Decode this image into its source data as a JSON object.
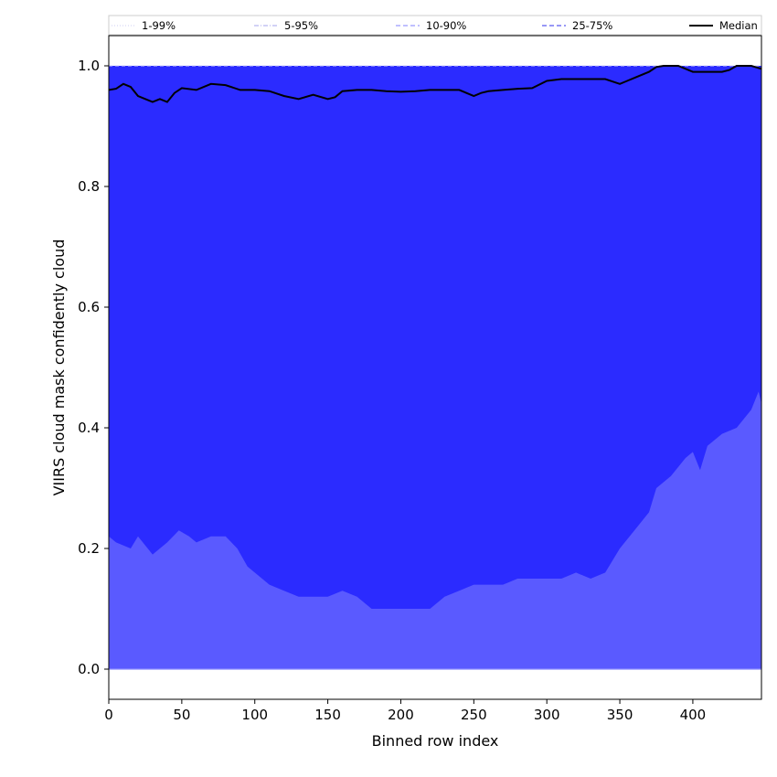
{
  "chart_data": {
    "type": "area",
    "title": "",
    "xlabel": "Binned row index",
    "ylabel": "VIIRS cloud mask confidently cloud",
    "xlim": [
      0,
      447
    ],
    "ylim": [
      -0.05,
      1.05
    ],
    "x_ticks": [
      "0",
      "50",
      "100",
      "150",
      "200",
      "250",
      "300",
      "350",
      "400"
    ],
    "x_tick_values": [
      0,
      50,
      100,
      150,
      200,
      250,
      300,
      350,
      400
    ],
    "y_ticks": [
      "0.0",
      "0.2",
      "0.4",
      "0.6",
      "0.8",
      "1.0"
    ],
    "y_tick_values": [
      0.0,
      0.2,
      0.4,
      0.6,
      0.8,
      1.0
    ],
    "grid": false,
    "legend_position": "top",
    "legend": [
      {
        "label": "1-99%",
        "color": "#d6d6f5",
        "style": "dotted"
      },
      {
        "label": "5-95%",
        "color": "#b6b6f0",
        "style": "dashdot"
      },
      {
        "label": "10-90%",
        "color": "#9a9aff",
        "style": "dashed"
      },
      {
        "label": "25-75%",
        "color": "#5a5af0",
        "style": "dashed"
      },
      {
        "label": "Median",
        "color": "#000000",
        "style": "solid"
      }
    ],
    "series": [
      {
        "name": "1-99%",
        "color": "#2b2bff",
        "x": [
          0,
          447
        ],
        "lower": [
          0.0,
          0.0
        ],
        "upper": [
          1.0,
          1.0
        ]
      },
      {
        "name": "5-95%",
        "color": "#2b2bff",
        "x": [
          0,
          447
        ],
        "lower": [
          0.0,
          0.0
        ],
        "upper": [
          1.0,
          1.0
        ]
      },
      {
        "name": "10-90%",
        "color": "#2b2bff",
        "x": [
          0,
          447
        ],
        "lower": [
          0.0,
          0.0
        ],
        "upper": [
          1.0,
          1.0
        ]
      },
      {
        "name": "25-75%",
        "color": "#5a5aff",
        "x": [
          0,
          5,
          15,
          20,
          30,
          35,
          40,
          48,
          55,
          60,
          70,
          80,
          88,
          95,
          100,
          110,
          120,
          130,
          140,
          150,
          160,
          170,
          180,
          190,
          200,
          210,
          220,
          230,
          240,
          250,
          260,
          270,
          280,
          290,
          300,
          310,
          320,
          330,
          340,
          350,
          360,
          370,
          375,
          385,
          395,
          400,
          405,
          410,
          420,
          430,
          440,
          445,
          447
        ],
        "lower": [
          0,
          0,
          0,
          0,
          0,
          0,
          0,
          0,
          0,
          0,
          0,
          0,
          0,
          0,
          0,
          0,
          0,
          0,
          0,
          0,
          0,
          0,
          0,
          0,
          0,
          0,
          0,
          0,
          0,
          0,
          0,
          0,
          0,
          0,
          0,
          0,
          0,
          0,
          0,
          0,
          0,
          0,
          0,
          0,
          0,
          0,
          0,
          0,
          0,
          0,
          0,
          0,
          0
        ],
        "upper": [
          0.22,
          0.21,
          0.2,
          0.22,
          0.19,
          0.2,
          0.21,
          0.23,
          0.22,
          0.21,
          0.22,
          0.22,
          0.2,
          0.17,
          0.16,
          0.14,
          0.13,
          0.12,
          0.12,
          0.12,
          0.13,
          0.12,
          0.1,
          0.1,
          0.1,
          0.1,
          0.1,
          0.12,
          0.13,
          0.14,
          0.14,
          0.14,
          0.15,
          0.15,
          0.15,
          0.15,
          0.16,
          0.15,
          0.16,
          0.2,
          0.23,
          0.26,
          0.3,
          0.32,
          0.35,
          0.36,
          0.33,
          0.37,
          0.39,
          0.4,
          0.43,
          0.46,
          0.44
        ]
      }
    ],
    "median": {
      "name": "Median",
      "color": "#000000",
      "x": [
        0,
        5,
        10,
        15,
        20,
        25,
        30,
        35,
        40,
        45,
        50,
        60,
        70,
        80,
        90,
        100,
        110,
        120,
        130,
        140,
        150,
        155,
        160,
        170,
        180,
        190,
        200,
        210,
        220,
        225,
        230,
        240,
        250,
        255,
        260,
        270,
        280,
        290,
        300,
        310,
        320,
        330,
        340,
        350,
        355,
        360,
        370,
        375,
        380,
        390,
        400,
        410,
        420,
        425,
        430,
        440,
        447
      ],
      "y": [
        0.96,
        0.962,
        0.97,
        0.965,
        0.95,
        0.945,
        0.94,
        0.945,
        0.94,
        0.955,
        0.963,
        0.96,
        0.97,
        0.968,
        0.96,
        0.96,
        0.958,
        0.95,
        0.945,
        0.952,
        0.945,
        0.948,
        0.958,
        0.96,
        0.96,
        0.958,
        0.957,
        0.958,
        0.96,
        0.96,
        0.96,
        0.96,
        0.95,
        0.955,
        0.958,
        0.96,
        0.962,
        0.963,
        0.975,
        0.978,
        0.978,
        0.978,
        0.978,
        0.97,
        0.975,
        0.98,
        0.99,
        0.998,
        1.0,
        1.0,
        0.99,
        0.99,
        0.99,
        0.993,
        1.0,
        1.0,
        0.995
      ]
    }
  }
}
